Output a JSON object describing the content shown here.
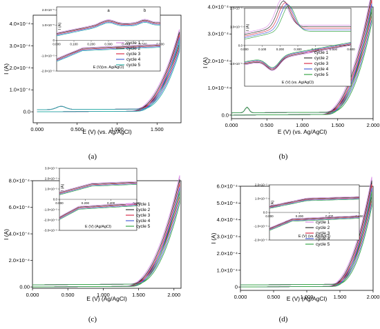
{
  "figure": {
    "captions": [
      "(a)",
      "(b)",
      "(c)",
      "(d)"
    ]
  },
  "chart_data": [
    {
      "type": "line",
      "panel": "a",
      "xlabel": "E (V) (vs. Ag/AgCl)",
      "ylabel": "I (A)",
      "xlim": [
        -0.05,
        1.8
      ],
      "ylim": [
        -5e-05,
        0.00044
      ],
      "xticks": [
        "0.000",
        "0.500",
        "1.000",
        "1.500"
      ],
      "xtick_values": [
        0,
        0.5,
        1.0,
        1.5
      ],
      "yticks": [
        "0.0",
        "1.0×10⁻⁴",
        "2.0×10⁻⁴",
        "3.0×10⁻⁴",
        "4.0×10⁻⁴"
      ],
      "ytick_values": [
        0,
        0.0001,
        0.0002,
        0.0003,
        0.0004
      ],
      "legend": [
        "cycle 1",
        "cycle 2",
        "cycle 3",
        "cycle 4",
        "cycle 5"
      ],
      "colors": [
        "#d98ee6",
        "#333333",
        "#d9304b",
        "#4a60d8",
        "#2fb0a8"
      ],
      "onset": 1.25,
      "iend": 0.00031,
      "inset": {
        "xlabel": "E (V)(vs. Ag/AgCl)",
        "ylabel": "I (A)",
        "xlim": [
          0,
          0.6
        ],
        "ylim": [
          -2e-05,
          2.2e-05
        ],
        "xticks": [
          "0.000",
          "0.100",
          "0.200",
          "0.300",
          "0.400",
          "0.500",
          "0.600"
        ],
        "xtick_values": [
          0,
          0.1,
          0.2,
          0.3,
          0.4,
          0.5,
          0.6
        ],
        "yticks": [
          "-2.0×10⁻⁵",
          "-1.0×10⁻⁵",
          "0",
          "1.0×10⁻⁵",
          "2.0×10⁻⁵"
        ],
        "ytick_values": [
          -2e-05,
          -1e-05,
          0,
          1e-05,
          2e-05
        ],
        "annotations": [
          "a",
          "b"
        ],
        "annotation_x": [
          0.3,
          0.51
        ]
      }
    },
    {
      "type": "line",
      "panel": "b",
      "xlabel": "E (V) (vs. Ag/AgCl)",
      "ylabel": "I (A)",
      "xlim": [
        0,
        2.0
      ],
      "ylim": [
        -1.3e-05,
        0.0004
      ],
      "xticks": [
        "0.000",
        "0.500",
        "1.000",
        "1.500",
        "2.000"
      ],
      "xtick_values": [
        0,
        0.5,
        1.0,
        1.5,
        2.0
      ],
      "yticks": [
        "0.0",
        "1.0×10⁻⁴",
        "2.0×10⁻⁴",
        "3.0×10⁻⁴",
        "4.0×10⁻⁴"
      ],
      "ytick_values": [
        0,
        0.0001,
        0.0002,
        0.0003,
        0.0004
      ],
      "legend": [
        "cycle 1",
        "cycle 2",
        "cycle 3",
        "cycle 4",
        "cycle 5"
      ],
      "colors": [
        "#d98ee6",
        "#333333",
        "#d9304b",
        "#4a60d8",
        "#3aa64a"
      ],
      "onset": 1.35,
      "iend": 0.00039,
      "inset": {
        "xlabel": "E (V) (vs. Ag/AgCl)",
        "ylabel": "I (A)",
        "xlim": [
          0,
          0.6
        ],
        "ylim": [
          -2.2e-05,
          2e-05
        ],
        "xticks": [
          "0.000",
          "0.100",
          "0.200",
          "0.300",
          "0.400",
          "0.500",
          "0.600"
        ],
        "xtick_values": [
          0,
          0.1,
          0.2,
          0.3,
          0.4,
          0.5,
          0.6
        ],
        "yticks": [
          "-1.0×10⁻⁵",
          "0.0",
          "1.0×10⁻⁵",
          "2.0×10⁻⁵"
        ],
        "ytick_values": [
          -1e-05,
          0,
          1e-05,
          2e-05
        ]
      }
    },
    {
      "type": "line",
      "panel": "c",
      "xlabel": "E (V) (Ag/AgCl)",
      "ylabel": "I (A)",
      "xlim": [
        0,
        2.1
      ],
      "ylim": [
        -1e-05,
        0.0008
      ],
      "xticks": [
        "0.000",
        "0.500",
        "1.000",
        "1.500",
        "2.000"
      ],
      "xtick_values": [
        0,
        0.5,
        1.0,
        1.5,
        2.0
      ],
      "yticks": [
        "0.00",
        "2.0×10⁻⁴",
        "4.0×10⁻⁴",
        "6.0×10⁻⁴",
        "8.0×10⁻⁴"
      ],
      "ytick_values": [
        0,
        0.0002,
        0.0004,
        0.0006,
        0.0008
      ],
      "legend": [
        "cycle 1",
        "cycle 2",
        "cycle 3",
        "cycle 4",
        "cycle 5"
      ],
      "colors": [
        "#d98ee6",
        "#333333",
        "#d9304b",
        "#4a60d8",
        "#3aa64a"
      ],
      "onset": 1.4,
      "iend": 0.00072,
      "inset": {
        "xlabel": "E (V) (Ag/AgCl)",
        "ylabel": "I (A)",
        "xlim": [
          0,
          0.6
        ],
        "ylim": [
          -3e-05,
          3e-05
        ],
        "xticks": [
          "0.000",
          "0.200",
          "0.400",
          "0.600"
        ],
        "xtick_values": [
          0,
          0.2,
          0.4,
          0.6
        ],
        "yticks": [
          "-3.0×10⁻⁵",
          "-2.0×10⁻⁵",
          "-1.0×10⁻⁵",
          "0.0",
          "1.0×10⁻⁵",
          "2.0×10⁻⁵",
          "3.0×10⁻⁵"
        ],
        "ytick_values": [
          -3e-05,
          -2e-05,
          -1e-05,
          0,
          1e-05,
          2e-05,
          3e-05
        ]
      }
    },
    {
      "type": "line",
      "panel": "d",
      "xlabel": "E (V) (Ag/AgCl)",
      "ylabel": "I (A)",
      "xlim": [
        0,
        2.0
      ],
      "ylim": [
        -2e-05,
        0.0006
      ],
      "xticks": [
        "0.000",
        "0.500",
        "1.000",
        "1.500",
        "2.000"
      ],
      "xtick_values": [
        0,
        0.5,
        1.0,
        1.5,
        2.0
      ],
      "yticks": [
        "0",
        "1.0×10⁻⁴",
        "2.0×10⁻⁴",
        "3.0×10⁻⁴",
        "4.0×10⁻⁴",
        "5.0×10⁻⁴",
        "6.0×10⁻⁴"
      ],
      "ytick_values": [
        0,
        0.0001,
        0.0002,
        0.0003,
        0.0004,
        0.0005,
        0.0006
      ],
      "legend": [
        "cycle 1",
        "cycle 2",
        "cycle 3",
        "cycle 4",
        "cycle 5"
      ],
      "colors": [
        "#d98ee6",
        "#333333",
        "#d9304b",
        "#4a60d8",
        "#3aa64a"
      ],
      "onset": 1.4,
      "iend": 0.00055,
      "inset": {
        "xlabel": "E (V) (vs. Ag/AgCl)",
        "ylabel": "I (A)",
        "xlim": [
          0,
          0.6
        ],
        "ylim": [
          -2e-05,
          2e-05
        ],
        "xticks": [
          "0.000",
          "0.200",
          "0.400",
          "0.600"
        ],
        "xtick_values": [
          0,
          0.2,
          0.4,
          0.6
        ],
        "yticks": [
          "-2.0×10⁻⁵",
          "-1.0×10⁻⁵",
          "0.0",
          "1.0×10⁻⁵",
          "2.0×10⁻⁵"
        ],
        "ytick_values": [
          -2e-05,
          -1e-05,
          0,
          1e-05,
          2e-05
        ]
      }
    }
  ]
}
